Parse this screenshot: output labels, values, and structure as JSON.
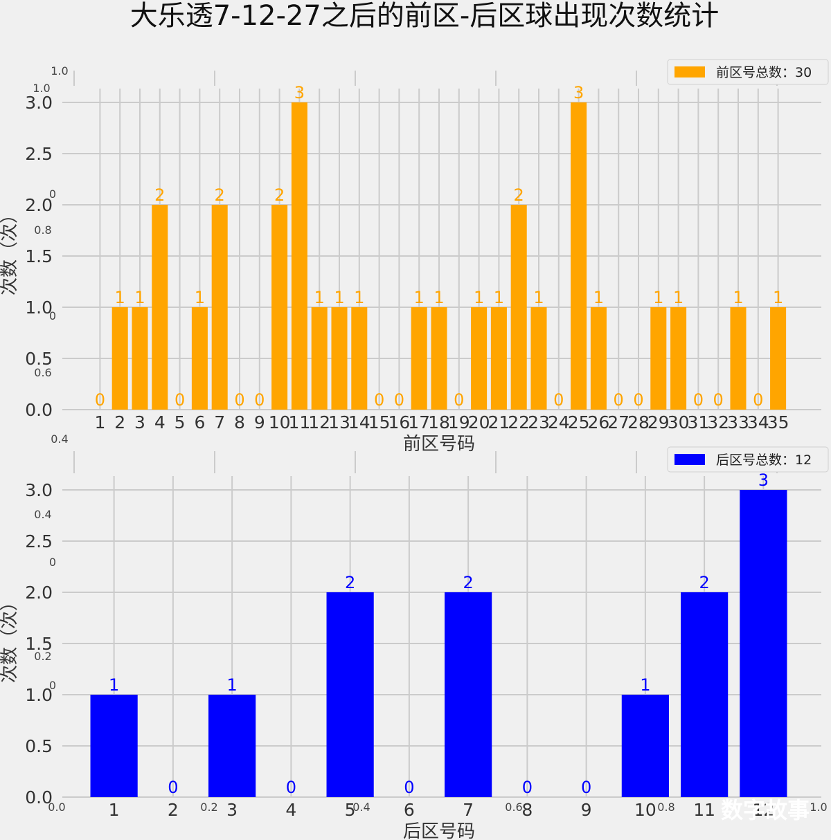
{
  "title": "大乐透7-12-27之后的前区-后区球出现次数统计",
  "watermark": "数字故事",
  "background_color": "#f0f0f0",
  "grid_color": "#cbcbcb",
  "chart_data": [
    {
      "type": "bar",
      "xlabel": "前区号码",
      "ylabel": "次数（次）",
      "ylim": [
        0,
        3
      ],
      "yticks": [
        "0.0",
        "0.5",
        "1.0",
        "1.5",
        "2.0",
        "2.5",
        "3.0"
      ],
      "bar_color": "#ffa500",
      "legend": "前区号总数：30",
      "legend_placement": "top-right",
      "grid": true,
      "categories": [
        "1",
        "2",
        "3",
        "4",
        "5",
        "6",
        "7",
        "8",
        "9",
        "10",
        "11",
        "12",
        "13",
        "14",
        "15",
        "16",
        "17",
        "18",
        "19",
        "20",
        "21",
        "22",
        "23",
        "24",
        "25",
        "26",
        "27",
        "28",
        "29",
        "30",
        "31",
        "32",
        "33",
        "34",
        "35"
      ],
      "values": [
        0,
        1,
        1,
        2,
        0,
        1,
        2,
        0,
        0,
        2,
        3,
        1,
        1,
        1,
        0,
        0,
        1,
        1,
        0,
        1,
        1,
        2,
        1,
        0,
        3,
        1,
        0,
        0,
        1,
        1,
        0,
        0,
        1,
        0,
        1
      ]
    },
    {
      "type": "bar",
      "xlabel": "后区号码",
      "ylabel": "次数（次）",
      "ylim": [
        0,
        3
      ],
      "yticks": [
        "0.0",
        "0.5",
        "1.0",
        "1.5",
        "2.0",
        "2.5",
        "3.0"
      ],
      "bar_color": "#0000ff",
      "legend": "后区号总数：12",
      "legend_placement": "top-right",
      "grid": true,
      "categories": [
        "1",
        "2",
        "3",
        "4",
        "5",
        "6",
        "7",
        "8",
        "9",
        "10",
        "11",
        "12"
      ],
      "values": [
        1,
        0,
        1,
        0,
        2,
        0,
        2,
        0,
        0,
        1,
        2,
        3
      ]
    }
  ],
  "background_axes": {
    "yticks": [
      "0",
      "0.2",
      "0.4",
      "0.6",
      "0.8",
      "1.0"
    ],
    "xticks": [
      "0.0",
      "0.2",
      "0.4",
      "0.6",
      "0.8",
      "1.0"
    ],
    "ytick_rows": [
      [
        "1.0",
        "1.0"
      ],
      [
        "0",
        "0.8"
      ],
      [
        "0",
        "0.6"
      ],
      [
        "0.4"
      ],
      [
        "0.4",
        "0"
      ],
      [
        "0.2",
        "0"
      ]
    ],
    "yaxis_ticks": [
      "1.0",
      "0.8",
      "0.6",
      "0.4",
      "0.2",
      "0"
    ],
    "xaxis_ticks": [
      "0.0",
      "0.2",
      "0.4",
      "0.6",
      "0.8",
      "1.0"
    ]
  }
}
